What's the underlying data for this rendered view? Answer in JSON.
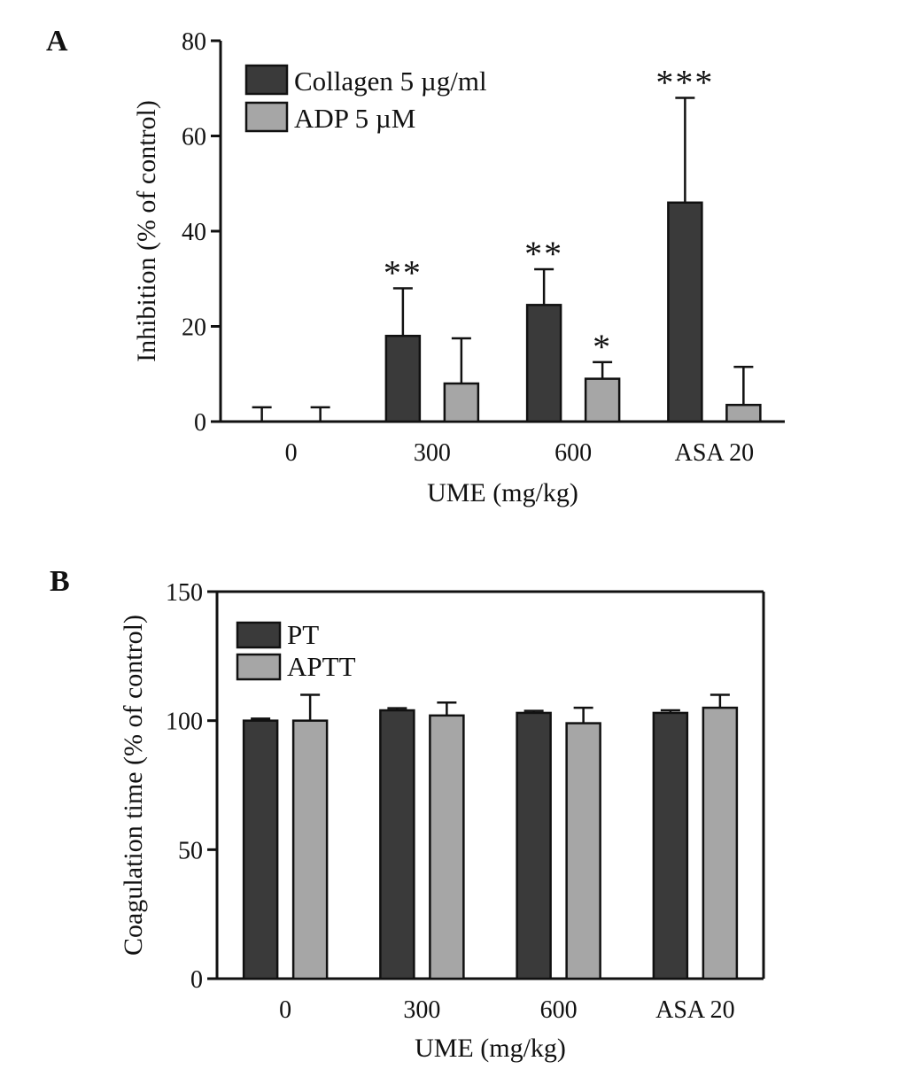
{
  "chart_data": [
    {
      "panel": "A",
      "type": "bar",
      "title": "",
      "xlabel": "UME (mg/kg)",
      "ylabel": "Inhibition (% of control)",
      "ylim": [
        0,
        80
      ],
      "yticks": [
        "0",
        "20",
        "40",
        "60",
        "80"
      ],
      "categories": [
        "0",
        "300",
        "600",
        "ASA 20"
      ],
      "legend_position": "top-left",
      "series": [
        {
          "name": "Collagen 5 µg/ml",
          "color": "#3a3a3a",
          "values": [
            0,
            18,
            24.5,
            46
          ],
          "errors": [
            3,
            10,
            7.5,
            22
          ],
          "significance": [
            "",
            "**",
            "**",
            "***"
          ]
        },
        {
          "name": "ADP 5 µM",
          "color": "#a6a6a6",
          "values": [
            0,
            8,
            9,
            3.5
          ],
          "errors": [
            3,
            9.5,
            3.5,
            8
          ],
          "significance": [
            "",
            "",
            "*",
            ""
          ]
        }
      ]
    },
    {
      "panel": "B",
      "type": "bar",
      "title": "",
      "xlabel": "UME (mg/kg)",
      "ylabel": "Coagulation time (% of control)",
      "ylim": [
        0,
        150
      ],
      "yticks": [
        "0",
        "50",
        "100",
        "150"
      ],
      "categories": [
        "0",
        "300",
        "600",
        "ASA 20"
      ],
      "legend_position": "top-left",
      "series": [
        {
          "name": "PT",
          "color": "#3a3a3a",
          "values": [
            100,
            104,
            103,
            103
          ],
          "errors": [
            0.8,
            0.8,
            0.8,
            1
          ],
          "significance": [
            "",
            "",
            "",
            ""
          ]
        },
        {
          "name": "APTT",
          "color": "#a6a6a6",
          "values": [
            100,
            102,
            99,
            105
          ],
          "errors": [
            10,
            5,
            6,
            5
          ],
          "significance": [
            "",
            "",
            "",
            ""
          ]
        }
      ]
    }
  ],
  "panels": {
    "a_label": "A",
    "b_label": "B"
  }
}
